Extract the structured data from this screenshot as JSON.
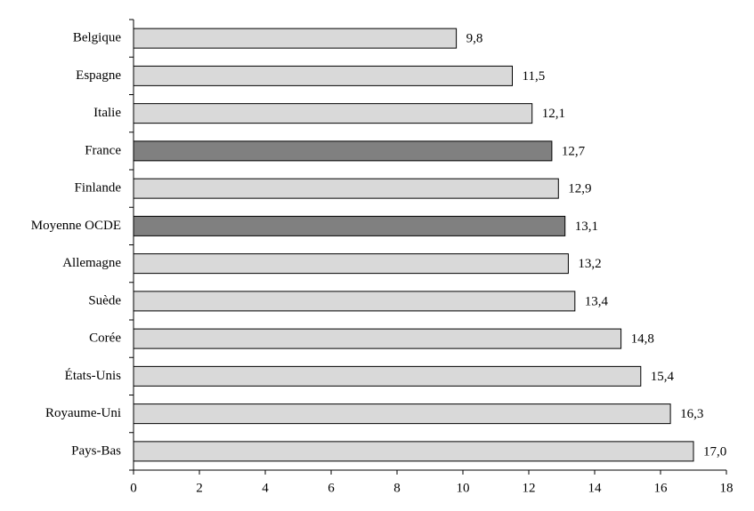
{
  "chart_data": {
    "type": "bar",
    "orientation": "horizontal",
    "categories": [
      "Belgique",
      "Espagne",
      "Italie",
      "France",
      "Finlande",
      "Moyenne OCDE",
      "Allemagne",
      "Suède",
      "Corée",
      "États-Unis",
      "Royaume-Uni",
      "Pays-Bas"
    ],
    "values": [
      9.8,
      11.5,
      12.1,
      12.7,
      12.9,
      13.1,
      13.2,
      13.4,
      14.8,
      15.4,
      16.3,
      17.0
    ],
    "value_labels": [
      "9,8",
      "11,5",
      "12,1",
      "12,7",
      "12,9",
      "13,1",
      "13,2",
      "13,4",
      "14,8",
      "15,4",
      "16,3",
      "17,0"
    ],
    "colors": [
      "#d9d9d9",
      "#d9d9d9",
      "#d9d9d9",
      "#808080",
      "#d9d9d9",
      "#808080",
      "#d9d9d9",
      "#d9d9d9",
      "#d9d9d9",
      "#d9d9d9",
      "#d9d9d9",
      "#d9d9d9"
    ],
    "xlim": [
      0,
      18
    ],
    "xticks": [
      0,
      2,
      4,
      6,
      8,
      10,
      12,
      14,
      16,
      18
    ],
    "grid": false
  }
}
